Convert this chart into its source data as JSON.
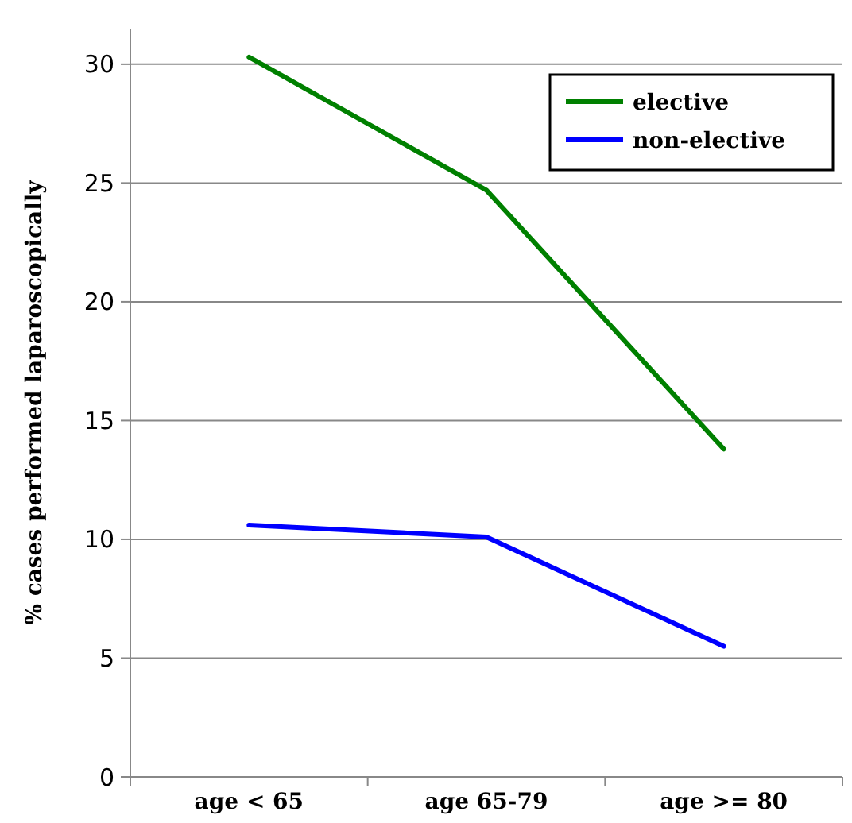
{
  "chart_data": {
    "type": "line",
    "ylabel": "% cases performed laparoscopically",
    "categories": [
      "age < 65",
      "age 65-79",
      "age >= 80"
    ],
    "series": [
      {
        "name": "elective",
        "color": "#008000",
        "values": [
          30.3,
          24.7,
          13.8
        ]
      },
      {
        "name": "non-elective",
        "color": "#0000ff",
        "values": [
          10.6,
          10.1,
          5.5
        ]
      }
    ],
    "ylim": [
      0,
      31.5
    ],
    "yticks": [
      0,
      5,
      10,
      15,
      20,
      25,
      30
    ],
    "grid": "y",
    "legend": "top right",
    "marker": "none",
    "line_style": "solid"
  }
}
